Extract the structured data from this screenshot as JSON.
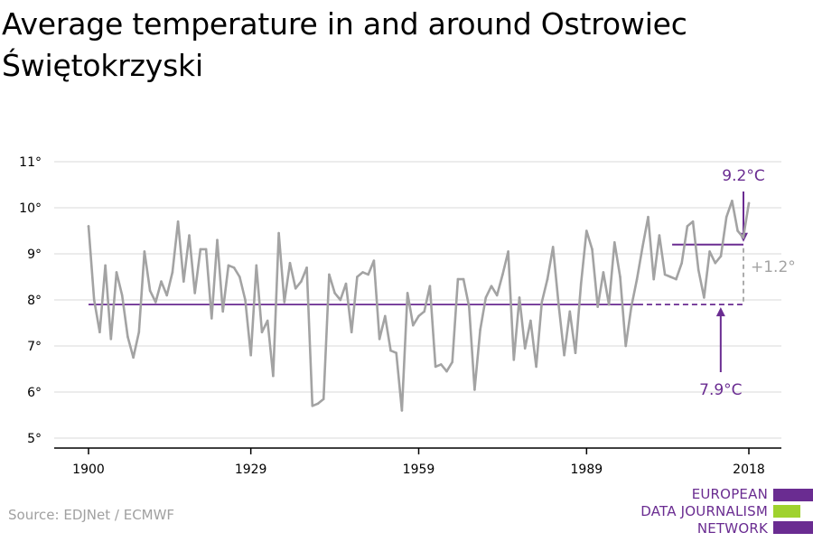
{
  "title": "Average temperature in and around Ostrowiec Świętokrzyski",
  "source": "Source: EDJNet / ECMWF",
  "logo": {
    "lines": [
      "EUROPEAN",
      "DATA JOURNALISM",
      "NETWORK"
    ],
    "bar_colors": [
      "#6a2c91",
      "#9fd22e",
      "#6a2c91"
    ]
  },
  "colors": {
    "series": "#a3a3a3",
    "accent": "#6a2c91",
    "grid": "#d9d9d9",
    "axis": "#000000",
    "annotation_grey": "#a3a3a3"
  },
  "chart_data": {
    "type": "line",
    "title": "Average temperature in and around Ostrowiec Świętokrzyski",
    "xlabel": "",
    "ylabel": "",
    "xlim": [
      1900,
      2018
    ],
    "ylim": [
      5,
      11
    ],
    "x_ticks": [
      1900,
      1929,
      1959,
      1989,
      2018
    ],
    "x_tick_labels": [
      "1900",
      "1929",
      "1959",
      "1989",
      "2018"
    ],
    "y_ticks": [
      5,
      6,
      7,
      8,
      9,
      10,
      11
    ],
    "y_tick_labels": [
      "5°",
      "6°",
      "7°",
      "8°",
      "9°",
      "10°",
      "11°"
    ],
    "grid": true,
    "legend": "none",
    "series": [
      {
        "x": [
          1900,
          1901,
          1902,
          1903,
          1904,
          1905,
          1906,
          1907,
          1908,
          1909,
          1910,
          1911,
          1912,
          1913,
          1914,
          1915,
          1916,
          1917,
          1918,
          1919,
          1920,
          1921,
          1922,
          1923,
          1924,
          1925,
          1926,
          1927,
          1928,
          1929,
          1930,
          1931,
          1932,
          1933,
          1934,
          1935,
          1936,
          1937,
          1938,
          1939,
          1940,
          1941,
          1942,
          1943,
          1944,
          1945,
          1946,
          1947,
          1948,
          1949,
          1950,
          1951,
          1952,
          1953,
          1954,
          1955,
          1956,
          1957,
          1958,
          1959,
          1960,
          1961,
          1962,
          1963,
          1964,
          1965,
          1966,
          1967,
          1968,
          1969,
          1970,
          1971,
          1972,
          1973,
          1974,
          1975,
          1976,
          1977,
          1978,
          1979,
          1980,
          1981,
          1982,
          1983,
          1984,
          1985,
          1986,
          1987,
          1988,
          1989,
          1990,
          1991,
          1992,
          1993,
          1994,
          1995,
          1996,
          1997,
          1998,
          1999,
          2000,
          2001,
          2002,
          2003,
          2004,
          2005,
          2006,
          2007,
          2008,
          2009,
          2010,
          2011,
          2012,
          2013,
          2014,
          2015,
          2016,
          2017,
          2018
        ],
        "values": [
          9.6,
          8.0,
          7.3,
          8.75,
          7.15,
          8.6,
          8.1,
          7.2,
          6.75,
          7.3,
          9.05,
          8.2,
          7.95,
          8.4,
          8.1,
          8.6,
          9.7,
          8.4,
          9.4,
          8.15,
          9.1,
          9.1,
          7.6,
          9.3,
          7.75,
          8.75,
          8.7,
          8.5,
          8.0,
          6.8,
          8.75,
          7.3,
          7.55,
          6.35,
          9.45,
          7.95,
          8.8,
          8.25,
          8.4,
          8.7,
          5.7,
          5.75,
          5.85,
          8.55,
          8.15,
          8.0,
          8.35,
          7.3,
          8.5,
          8.6,
          8.55,
          8.85,
          7.15,
          7.65,
          6.9,
          6.85,
          5.6,
          8.15,
          7.45,
          7.65,
          7.75,
          8.3,
          6.55,
          6.6,
          6.45,
          6.65,
          8.45,
          8.45,
          7.85,
          6.05,
          7.35,
          8.05,
          8.3,
          8.1,
          8.55,
          9.05,
          6.7,
          8.05,
          6.95,
          7.55,
          6.55,
          7.95,
          8.45,
          9.15,
          7.9,
          6.8,
          7.75,
          6.85,
          8.35,
          9.5,
          9.1,
          7.85,
          8.6,
          7.9,
          9.25,
          8.5,
          7.0,
          7.85,
          8.45,
          9.15,
          9.8,
          8.45,
          9.4,
          8.55,
          8.5,
          8.45,
          8.8,
          9.6,
          9.7,
          8.65,
          8.05,
          9.05,
          8.8,
          8.95,
          9.8,
          10.15,
          9.5,
          9.35,
          10.1
        ]
      }
    ],
    "annotations": {
      "baseline": {
        "value": 7.9,
        "label": "7.9°C",
        "x_start": 1900,
        "x_end": 2012
      },
      "recent": {
        "value": 9.2,
        "label": "9.2°C",
        "x_start": 2003,
        "x_end": 2018
      },
      "difference": {
        "label": "+1.2°"
      }
    }
  }
}
